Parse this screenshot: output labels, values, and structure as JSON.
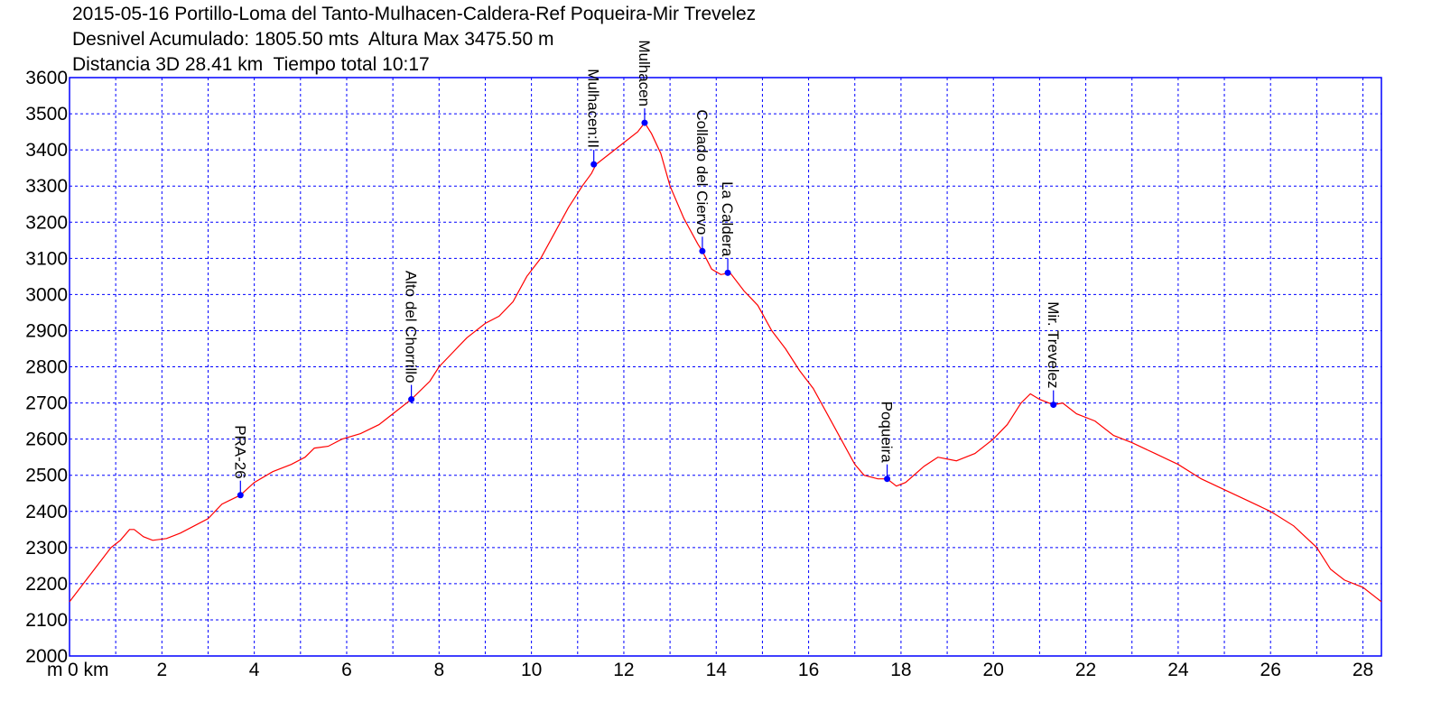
{
  "header": {
    "title": "2015-05-16 Portillo-Loma del Tanto-Mulhacen-Caldera-Ref Poqueira-Mir Trevelez",
    "line2": "Desnivel Acumulado: 1805.50 mts  Altura Max 3475.50 m",
    "line3": "Distancia 3D 28.41 km  Tiempo total 10:17"
  },
  "chart_data": {
    "type": "line",
    "title": "2015-05-16 Portillo-Loma del Tanto-Mulhacen-Caldera-Ref Poqueira-Mir Trevelez",
    "x_unit_label": "m",
    "x_first_tick": "0 km",
    "xlim": [
      0,
      28.4
    ],
    "ylim": [
      2000,
      3600
    ],
    "x_ticks": [
      0,
      2,
      4,
      6,
      8,
      10,
      12,
      14,
      16,
      18,
      20,
      22,
      24,
      26,
      28
    ],
    "y_ticks": [
      2000,
      2100,
      2200,
      2300,
      2400,
      2500,
      2600,
      2700,
      2800,
      2900,
      3000,
      3100,
      3200,
      3300,
      3400,
      3500,
      3600
    ],
    "grid": true,
    "colors": {
      "line": "#ff0000",
      "grid": "#0000ff",
      "frame": "#0000ff",
      "waypoint": "#0000ff"
    },
    "series": [
      {
        "values": [
          [
            0,
            2150
          ],
          [
            0.3,
            2200
          ],
          [
            0.6,
            2250
          ],
          [
            0.9,
            2300
          ],
          [
            1.1,
            2320
          ],
          [
            1.3,
            2350
          ],
          [
            1.4,
            2350
          ],
          [
            1.6,
            2330
          ],
          [
            1.8,
            2320
          ],
          [
            2.1,
            2325
          ],
          [
            2.4,
            2340
          ],
          [
            2.7,
            2360
          ],
          [
            3.0,
            2380
          ],
          [
            3.3,
            2420
          ],
          [
            3.7,
            2445
          ],
          [
            4.0,
            2480
          ],
          [
            4.4,
            2510
          ],
          [
            4.8,
            2530
          ],
          [
            5.1,
            2550
          ],
          [
            5.3,
            2575
          ],
          [
            5.6,
            2580
          ],
          [
            5.9,
            2600
          ],
          [
            6.3,
            2615
          ],
          [
            6.7,
            2640
          ],
          [
            7.0,
            2670
          ],
          [
            7.4,
            2710
          ],
          [
            7.8,
            2760
          ],
          [
            8.0,
            2800
          ],
          [
            8.3,
            2840
          ],
          [
            8.6,
            2880
          ],
          [
            9.0,
            2920
          ],
          [
            9.3,
            2940
          ],
          [
            9.6,
            2980
          ],
          [
            9.9,
            3050
          ],
          [
            10.2,
            3100
          ],
          [
            10.5,
            3170
          ],
          [
            10.8,
            3240
          ],
          [
            11.1,
            3300
          ],
          [
            11.3,
            3335
          ],
          [
            11.4,
            3360
          ],
          [
            11.7,
            3390
          ],
          [
            12.0,
            3420
          ],
          [
            12.3,
            3450
          ],
          [
            12.45,
            3475
          ],
          [
            12.6,
            3445
          ],
          [
            12.8,
            3390
          ],
          [
            13.0,
            3300
          ],
          [
            13.3,
            3210
          ],
          [
            13.6,
            3140
          ],
          [
            13.7,
            3120
          ],
          [
            13.9,
            3070
          ],
          [
            14.1,
            3055
          ],
          [
            14.3,
            3060
          ],
          [
            14.6,
            3010
          ],
          [
            14.9,
            2970
          ],
          [
            15.2,
            2900
          ],
          [
            15.5,
            2850
          ],
          [
            15.8,
            2790
          ],
          [
            16.1,
            2740
          ],
          [
            16.4,
            2670
          ],
          [
            16.7,
            2600
          ],
          [
            17.0,
            2530
          ],
          [
            17.2,
            2500
          ],
          [
            17.5,
            2490
          ],
          [
            17.7,
            2490
          ],
          [
            17.9,
            2470
          ],
          [
            18.1,
            2480
          ],
          [
            18.5,
            2525
          ],
          [
            18.8,
            2550
          ],
          [
            19.2,
            2540
          ],
          [
            19.6,
            2560
          ],
          [
            20.0,
            2600
          ],
          [
            20.3,
            2640
          ],
          [
            20.6,
            2700
          ],
          [
            20.8,
            2725
          ],
          [
            21.0,
            2710
          ],
          [
            21.3,
            2695
          ],
          [
            21.5,
            2700
          ],
          [
            21.8,
            2670
          ],
          [
            22.2,
            2650
          ],
          [
            22.6,
            2610
          ],
          [
            23.0,
            2590
          ],
          [
            23.5,
            2560
          ],
          [
            24.0,
            2530
          ],
          [
            24.5,
            2490
          ],
          [
            25.0,
            2460
          ],
          [
            25.5,
            2430
          ],
          [
            26.0,
            2400
          ],
          [
            26.5,
            2360
          ],
          [
            27.0,
            2300
          ],
          [
            27.3,
            2240
          ],
          [
            27.6,
            2210
          ],
          [
            28.0,
            2190
          ],
          [
            28.4,
            2150
          ]
        ]
      }
    ],
    "waypoints": [
      {
        "name": "PRA-26",
        "x": 3.7,
        "y": 2445
      },
      {
        "name": "Alto del Chorrillo",
        "x": 7.4,
        "y": 2710
      },
      {
        "name": "Mulhacen:II",
        "x": 11.35,
        "y": 3360
      },
      {
        "name": "Mulhacen",
        "x": 12.45,
        "y": 3475
      },
      {
        "name": "Collado del Ciervo",
        "x": 13.7,
        "y": 3120
      },
      {
        "name": "La Caldera",
        "x": 14.25,
        "y": 3060
      },
      {
        "name": "Poqueira",
        "x": 17.7,
        "y": 2490
      },
      {
        "name": "Mir. Trevelez",
        "x": 21.3,
        "y": 2695
      }
    ]
  }
}
